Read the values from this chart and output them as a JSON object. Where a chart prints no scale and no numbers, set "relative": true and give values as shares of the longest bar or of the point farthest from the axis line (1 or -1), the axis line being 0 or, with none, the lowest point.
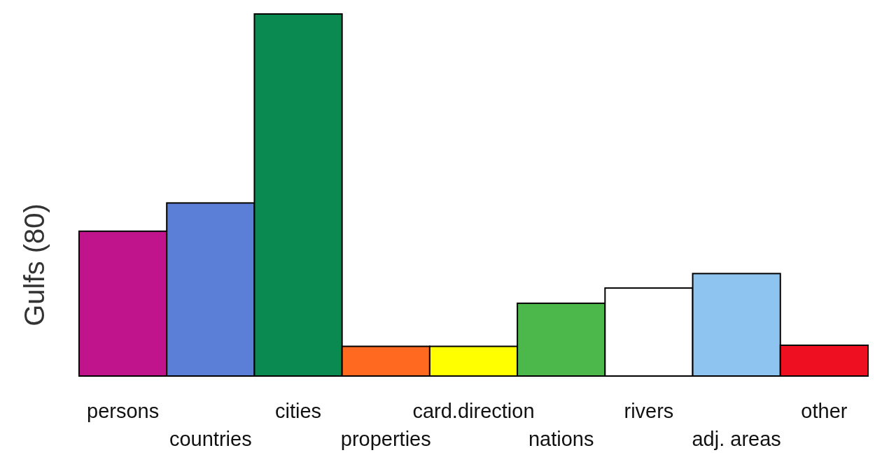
{
  "chart_data": {
    "type": "bar",
    "ylabel": "Gulfs (80)",
    "relative": true,
    "categories": [
      "persons",
      "countries",
      "cities",
      "properties",
      "card.direction",
      "nations",
      "rivers",
      "adj. areas",
      "other"
    ],
    "values": [
      0.4,
      0.478,
      1,
      0.082,
      0.082,
      0.201,
      0.243,
      0.283,
      0.085
    ],
    "colors": [
      "#c0148c",
      "#5b7fd6",
      "#0a8a50",
      "#ff6a20",
      "#ffff00",
      "#4cb84c",
      "#ffffff",
      "#8ec4f0",
      "#ee1020"
    ]
  }
}
